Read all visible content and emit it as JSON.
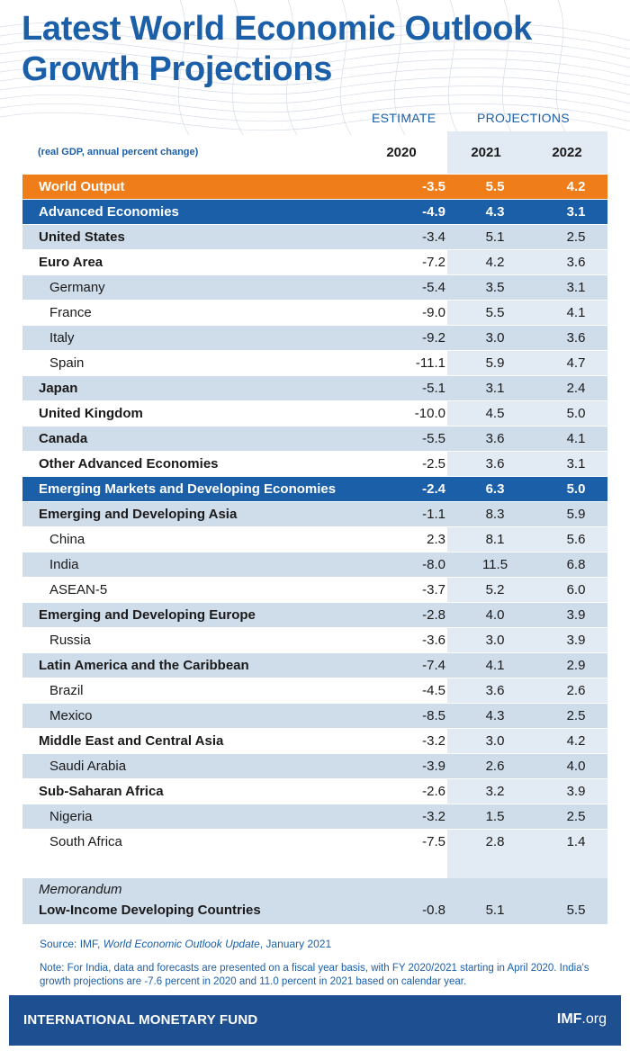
{
  "title_line1": "Latest World Economic Outlook",
  "title_line2": "Growth Projections",
  "estimate_label": "ESTIMATE",
  "projections_label": "PROJECTIONS",
  "subtitle": "(real GDP, annual percent change)",
  "years": [
    "2020",
    "2021",
    "2022"
  ],
  "rows": [
    {
      "name": "World Output",
      "style": "world",
      "values": [
        "-3.5",
        "5.5",
        "4.2"
      ]
    },
    {
      "name": "Advanced Economies",
      "style": "group",
      "values": [
        "-4.9",
        "4.3",
        "3.1"
      ]
    },
    {
      "name": "United States",
      "style": "alt-bold",
      "values": [
        "-3.4",
        "5.1",
        "2.5"
      ]
    },
    {
      "name": "Euro Area",
      "style": "bold",
      "values": [
        "-7.2",
        "4.2",
        "3.6"
      ]
    },
    {
      "name": "Germany",
      "style": "alt-sub",
      "values": [
        "-5.4",
        "3.5",
        "3.1"
      ]
    },
    {
      "name": "France",
      "style": "sub",
      "values": [
        "-9.0",
        "5.5",
        "4.1"
      ]
    },
    {
      "name": "Italy",
      "style": "alt-sub",
      "values": [
        "-9.2",
        "3.0",
        "3.6"
      ]
    },
    {
      "name": "Spain",
      "style": "sub",
      "values": [
        "-11.1",
        "5.9",
        "4.7"
      ]
    },
    {
      "name": "Japan",
      "style": "alt-bold",
      "values": [
        "-5.1",
        "3.1",
        "2.4"
      ]
    },
    {
      "name": "United Kingdom",
      "style": "bold",
      "values": [
        "-10.0",
        "4.5",
        "5.0"
      ]
    },
    {
      "name": "Canada",
      "style": "alt-bold",
      "values": [
        "-5.5",
        "3.6",
        "4.1"
      ]
    },
    {
      "name": "Other Advanced Economies",
      "style": "bold",
      "values": [
        "-2.5",
        "3.6",
        "3.1"
      ]
    },
    {
      "name": "Emerging Markets and Developing Economies",
      "style": "group",
      "values": [
        "-2.4",
        "6.3",
        "5.0"
      ]
    },
    {
      "name": "Emerging and Developing Asia",
      "style": "alt-bold",
      "values": [
        "-1.1",
        "8.3",
        "5.9"
      ]
    },
    {
      "name": "China",
      "style": "sub",
      "values": [
        "2.3",
        "8.1",
        "5.6"
      ]
    },
    {
      "name": "India",
      "style": "alt-sub",
      "values": [
        "-8.0",
        "11.5",
        "6.8"
      ]
    },
    {
      "name": "ASEAN-5",
      "style": "sub",
      "values": [
        "-3.7",
        "5.2",
        "6.0"
      ]
    },
    {
      "name": "Emerging and Developing Europe",
      "style": "alt-bold",
      "values": [
        "-2.8",
        "4.0",
        "3.9"
      ]
    },
    {
      "name": "Russia",
      "style": "sub",
      "values": [
        "-3.6",
        "3.0",
        "3.9"
      ]
    },
    {
      "name": "Latin America and the Caribbean",
      "style": "alt-bold",
      "values": [
        "-7.4",
        "4.1",
        "2.9"
      ]
    },
    {
      "name": "Brazil",
      "style": "sub",
      "values": [
        "-4.5",
        "3.6",
        "2.6"
      ]
    },
    {
      "name": "Mexico",
      "style": "alt-sub",
      "values": [
        "-8.5",
        "4.3",
        "2.5"
      ]
    },
    {
      "name": "Middle East and Central Asia",
      "style": "bold",
      "values": [
        "-3.2",
        "3.0",
        "4.2"
      ]
    },
    {
      "name": "Saudi Arabia",
      "style": "alt-sub",
      "values": [
        "-3.9",
        "2.6",
        "4.0"
      ]
    },
    {
      "name": "Sub-Saharan Africa",
      "style": "bold",
      "values": [
        "-2.6",
        "3.2",
        "3.9"
      ]
    },
    {
      "name": "Nigeria",
      "style": "alt-sub",
      "values": [
        "-3.2",
        "1.5",
        "2.5"
      ]
    },
    {
      "name": "South Africa",
      "style": "sub",
      "values": [
        "-7.5",
        "2.8",
        "1.4"
      ]
    }
  ],
  "memo": {
    "label": "Memorandum",
    "name": "Low-Income Developing Countries",
    "values": [
      "-0.8",
      "5.1",
      "5.5"
    ]
  },
  "source_prefix": "Source: IMF, ",
  "source_title": "World Economic Outlook Update",
  "source_suffix": ", January 2021",
  "note": "Note: For India, data and forecasts are presented on a fiscal year basis, with FY 2020/2021 starting in April 2020. India's growth projections are -7.6 percent in 2020 and 11.0 percent in 2021 based on calendar year.",
  "footer": {
    "org": "INTERNATIONAL MONETARY FUND",
    "site_bold": "IMF",
    "site_rest": ".org"
  },
  "colors": {
    "brand_blue": "#1a5fa8",
    "world_orange": "#ef7d19",
    "alt_row": "#cfdcea",
    "footer_blue": "#1d4f91"
  }
}
